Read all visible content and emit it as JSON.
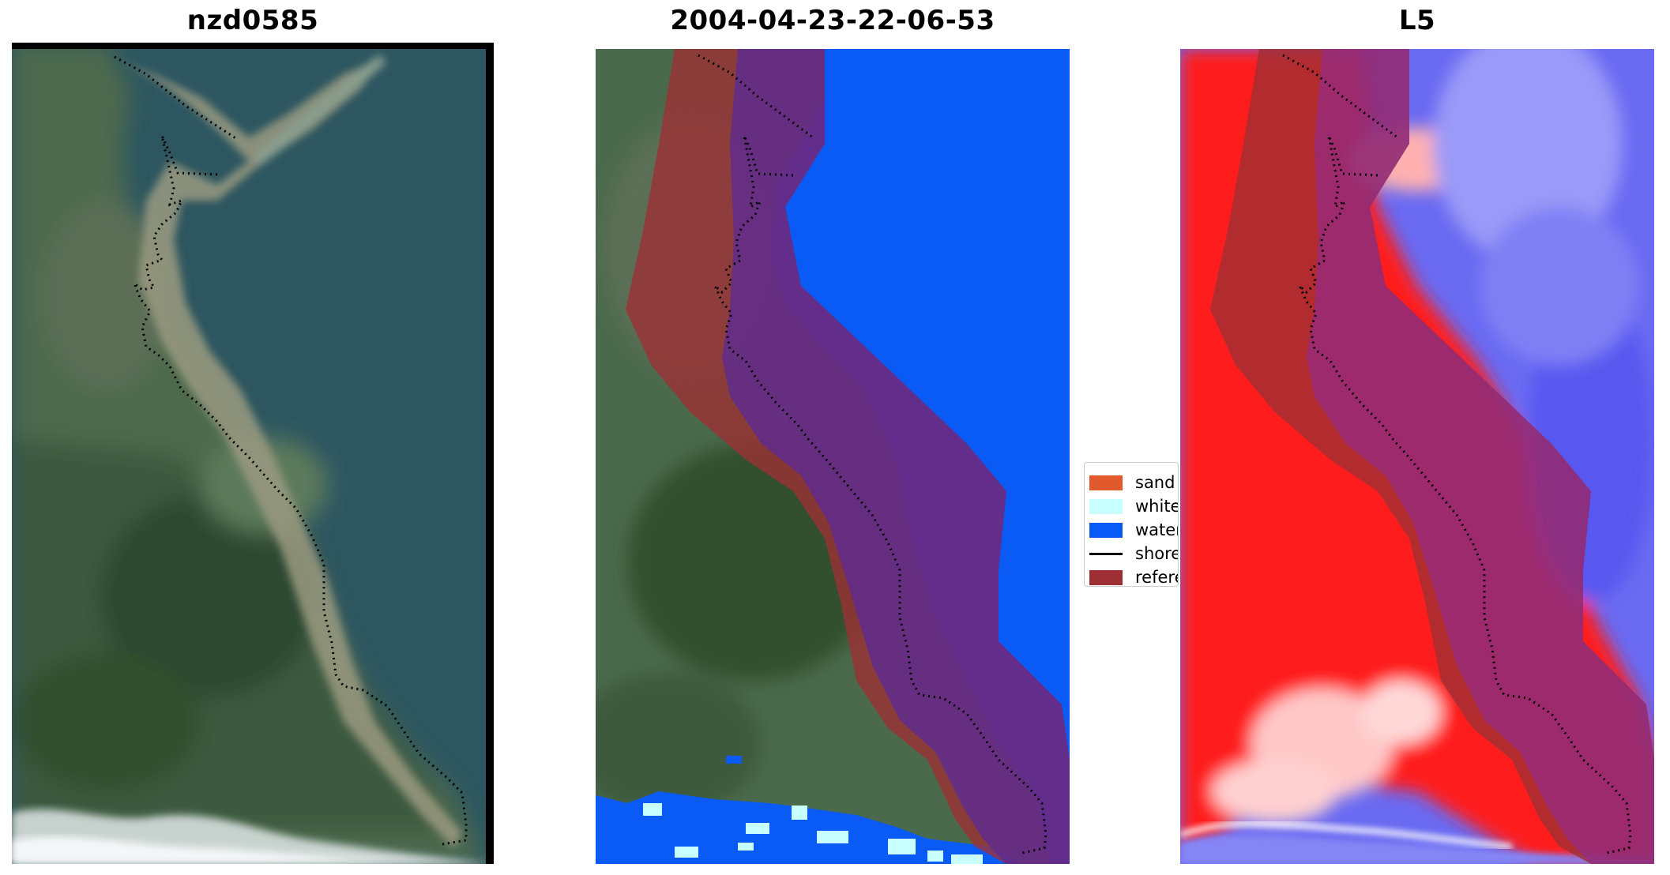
{
  "panels": [
    {
      "title": "nzd0585"
    },
    {
      "title": "2004-04-23-22-06-53"
    },
    {
      "title": "L5"
    }
  ],
  "legend": {
    "items": [
      {
        "label": "sand",
        "color": "#e05a2d",
        "kind": "patch"
      },
      {
        "label": "white-water",
        "color": "#c8ffff",
        "kind": "patch"
      },
      {
        "label": "water",
        "color": "#0a5af5",
        "kind": "patch"
      },
      {
        "label": "shoreline",
        "color": "#000000",
        "kind": "line"
      },
      {
        "label": "reference shoreline buffer",
        "color": "#9e3035",
        "kind": "patch"
      }
    ]
  },
  "colors": {
    "land_green": "#4b6a4c",
    "water_teal": "#2d5660",
    "classified_water": "#0a5af5",
    "buffer_overlay": "#9e3035",
    "index_red": "#ff1a1a",
    "index_blue": "#5a5af5"
  }
}
